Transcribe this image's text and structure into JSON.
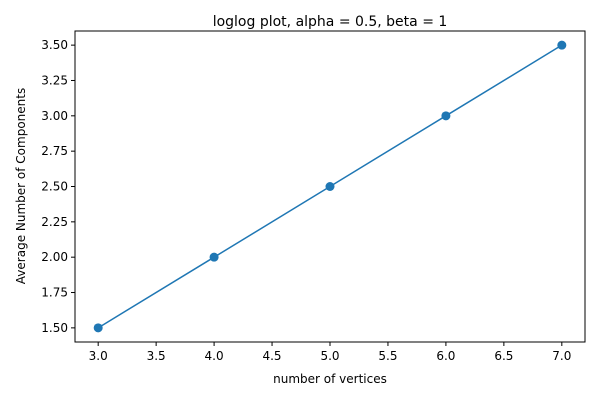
{
  "chart_data": {
    "type": "line",
    "title": "loglog plot, alpha = 0.5, beta = 1",
    "xlabel": "number of vertices",
    "ylabel": "Average Number of Components",
    "x": [
      3,
      4,
      5,
      6,
      7
    ],
    "series": [
      {
        "values": [
          1.5,
          2.0,
          2.5,
          3.0,
          3.5
        ],
        "color": "#1f77b4",
        "marker": "circle"
      }
    ],
    "xlim": [
      2.8,
      7.2
    ],
    "ylim": [
      1.4,
      3.6
    ],
    "xticks": [
      "3.0",
      "3.5",
      "4.0",
      "4.5",
      "5.0",
      "5.5",
      "6.0",
      "6.5",
      "7.0"
    ],
    "yticks": [
      "1.50",
      "1.75",
      "2.00",
      "2.25",
      "2.50",
      "2.75",
      "3.00",
      "3.25",
      "3.50"
    ],
    "grid": false,
    "legend": "none"
  }
}
